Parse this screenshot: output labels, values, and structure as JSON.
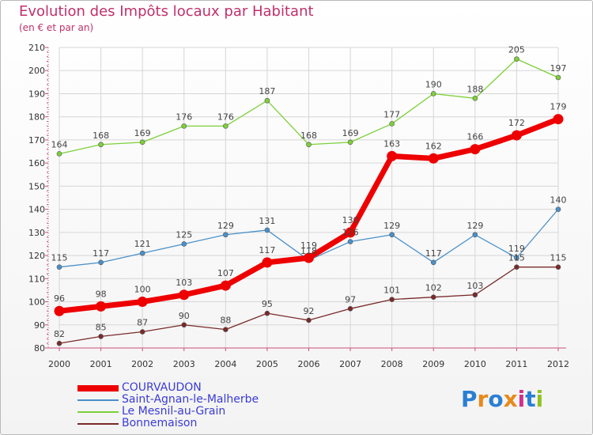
{
  "header": {
    "title": "Evolution des Impôts locaux par Habitant",
    "subtitle": "(en € et par an)"
  },
  "logo": {
    "text": "Proxiti",
    "colors": [
      "#2a7fd4",
      "#e8891c",
      "#2a7fd4",
      "#e8891c",
      "#d22f8c",
      "#2a7fd4",
      "#8fc31f"
    ]
  },
  "colors": {
    "title": "#c0306a",
    "axis": "#c8507d",
    "grid": "#d6d6d6",
    "legend_text": "#3b3bd6"
  },
  "chart_data": {
    "type": "line",
    "title": "Evolution des Impôts locaux par Habitant",
    "subtitle": "(en € et par an)",
    "xlabel": "",
    "ylabel": "",
    "x": [
      "2000",
      "2001",
      "2002",
      "2003",
      "2004",
      "2005",
      "2006",
      "2007",
      "2008",
      "2009",
      "2010",
      "2011",
      "2012"
    ],
    "ylim": [
      80,
      210
    ],
    "yticks": [
      80,
      90,
      100,
      110,
      120,
      130,
      140,
      150,
      160,
      170,
      180,
      190,
      200,
      210
    ],
    "grid": true,
    "legend_position": "bottom-left",
    "series": [
      {
        "name": "COURVAUDON",
        "color": "#ee0000",
        "emphasis": "thick",
        "values": [
          96,
          98,
          100,
          103,
          107,
          117,
          119,
          130,
          163,
          162,
          166,
          172,
          179
        ],
        "labels": [
          "96",
          "98",
          "100",
          "103",
          "107",
          "117",
          "119",
          "130",
          "163",
          "162",
          "166",
          "172",
          "179"
        ]
      },
      {
        "name": "Saint-Agnan-le-Malherbe",
        "color": "#4a90c8",
        "emphasis": "thin",
        "values": [
          115,
          117,
          121,
          125,
          129,
          131,
          118,
          126,
          129,
          117,
          129,
          119,
          140
        ],
        "labels": [
          "115",
          "117",
          "121",
          "125",
          "129",
          "131",
          "118",
          "126",
          "129",
          "117",
          "129",
          "119",
          "140"
        ]
      },
      {
        "name": "Le Mesnil-au-Grain",
        "color": "#7dd03a",
        "emphasis": "thin",
        "values": [
          164,
          168,
          169,
          176,
          176,
          187,
          168,
          169,
          177,
          190,
          188,
          205,
          197
        ],
        "labels": [
          "164",
          "168",
          "169",
          "176",
          "176",
          "187",
          "168",
          "169",
          "177",
          "190",
          "188",
          "205",
          "197"
        ]
      },
      {
        "name": "Bonnemaison",
        "color": "#7a2a2a",
        "emphasis": "thin",
        "values": [
          82,
          85,
          87,
          90,
          88,
          95,
          92,
          97,
          101,
          102,
          103,
          115,
          115
        ],
        "labels": [
          "82",
          "85",
          "87",
          "90",
          "88",
          "95",
          "92",
          "97",
          "101",
          "102",
          "103",
          "115",
          "115"
        ]
      }
    ]
  }
}
